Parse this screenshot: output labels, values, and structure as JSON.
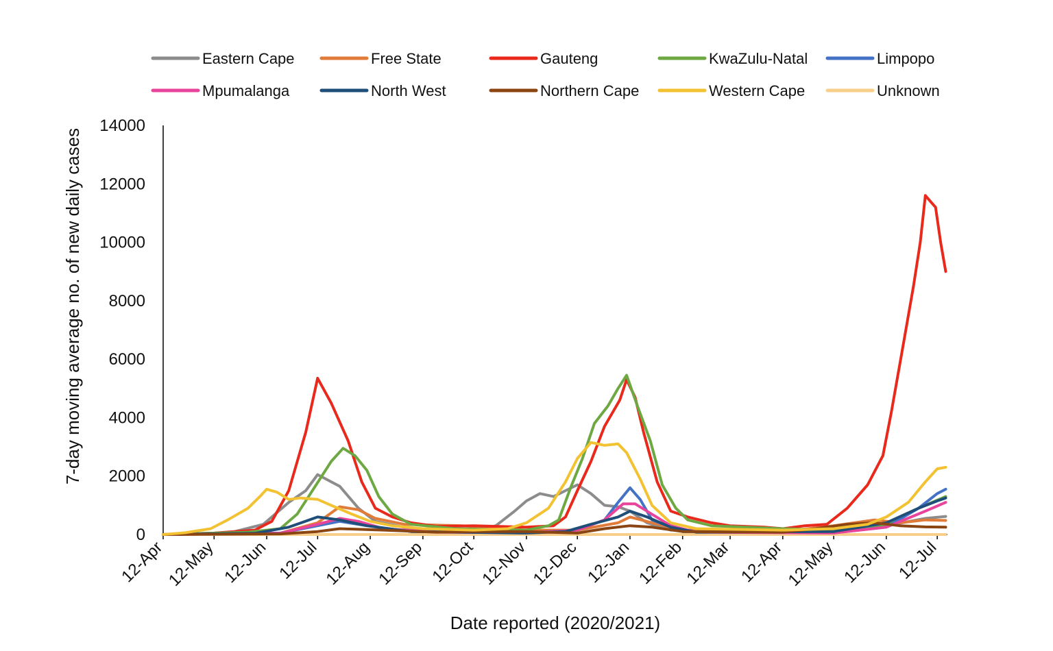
{
  "chart_data": {
    "type": "line",
    "xlabel": "Date reported (2020/2021)",
    "ylabel": "7-day moving average no. of new daily cases",
    "ylim": [
      0,
      14000
    ],
    "yticks": [
      "0",
      "2000",
      "4000",
      "6000",
      "8000",
      "10000",
      "12000",
      "14000"
    ],
    "xlim": [
      "2020-04-12",
      "2021-07-18"
    ],
    "xticks": [
      {
        "date": "2020-04-12",
        "label": "12-Apr"
      },
      {
        "date": "2020-05-12",
        "label": "12-May"
      },
      {
        "date": "2020-06-12",
        "label": "12-Jun"
      },
      {
        "date": "2020-07-12",
        "label": "12-Jul"
      },
      {
        "date": "2020-08-12",
        "label": "12-Aug"
      },
      {
        "date": "2020-09-12",
        "label": "12-Sep"
      },
      {
        "date": "2020-10-12",
        "label": "12-Oct"
      },
      {
        "date": "2020-11-12",
        "label": "12-Nov"
      },
      {
        "date": "2020-12-12",
        "label": "12-Dec"
      },
      {
        "date": "2021-01-12",
        "label": "12-Jan"
      },
      {
        "date": "2021-02-12",
        "label": "12-Feb"
      },
      {
        "date": "2021-03-12",
        "label": "12-Mar"
      },
      {
        "date": "2021-04-12",
        "label": "12-Apr"
      },
      {
        "date": "2021-05-12",
        "label": "12-May"
      },
      {
        "date": "2021-06-12",
        "label": "12-Jun"
      },
      {
        "date": "2021-07-12",
        "label": "12-Jul"
      }
    ],
    "grid": false,
    "legend_position": "top",
    "series": [
      {
        "name": "Eastern Cape",
        "color": "#8c8c8c",
        "points": [
          [
            "2020-04-12",
            0
          ],
          [
            "2020-05-20",
            40
          ],
          [
            "2020-06-10",
            350
          ],
          [
            "2020-06-25",
            1100
          ],
          [
            "2020-07-05",
            1500
          ],
          [
            "2020-07-12",
            2050
          ],
          [
            "2020-07-25",
            1650
          ],
          [
            "2020-08-05",
            900
          ],
          [
            "2020-08-15",
            450
          ],
          [
            "2020-09-05",
            200
          ],
          [
            "2020-10-12",
            150
          ],
          [
            "2020-10-25",
            300
          ],
          [
            "2020-11-05",
            800
          ],
          [
            "2020-11-12",
            1150
          ],
          [
            "2020-11-20",
            1400
          ],
          [
            "2020-11-28",
            1300
          ],
          [
            "2020-12-05",
            1500
          ],
          [
            "2020-12-12",
            1700
          ],
          [
            "2020-12-20",
            1400
          ],
          [
            "2020-12-28",
            1000
          ],
          [
            "2021-01-05",
            950
          ],
          [
            "2021-01-12",
            800
          ],
          [
            "2021-01-22",
            400
          ],
          [
            "2021-02-05",
            150
          ],
          [
            "2021-05-12",
            150
          ],
          [
            "2021-06-12",
            300
          ],
          [
            "2021-07-05",
            550
          ],
          [
            "2021-07-17",
            620
          ]
        ]
      },
      {
        "name": "Free State",
        "color": "#e07b39",
        "points": [
          [
            "2020-04-12",
            0
          ],
          [
            "2020-06-20",
            50
          ],
          [
            "2020-07-12",
            400
          ],
          [
            "2020-07-25",
            950
          ],
          [
            "2020-08-05",
            850
          ],
          [
            "2020-08-15",
            550
          ],
          [
            "2020-09-01",
            350
          ],
          [
            "2020-10-05",
            300
          ],
          [
            "2020-11-12",
            150
          ],
          [
            "2020-12-12",
            150
          ],
          [
            "2021-01-05",
            400
          ],
          [
            "2021-01-12",
            600
          ],
          [
            "2021-01-25",
            400
          ],
          [
            "2021-02-12",
            150
          ],
          [
            "2021-04-12",
            100
          ],
          [
            "2021-05-12",
            300
          ],
          [
            "2021-06-05",
            500
          ],
          [
            "2021-06-20",
            400
          ],
          [
            "2021-07-05",
            500
          ],
          [
            "2021-07-17",
            480
          ]
        ]
      },
      {
        "name": "Gauteng",
        "color": "#e8291c",
        "points": [
          [
            "2020-04-12",
            0
          ],
          [
            "2020-05-12",
            50
          ],
          [
            "2020-06-05",
            150
          ],
          [
            "2020-06-15",
            450
          ],
          [
            "2020-06-25",
            1500
          ],
          [
            "2020-07-05",
            3500
          ],
          [
            "2020-07-12",
            5350
          ],
          [
            "2020-07-20",
            4500
          ],
          [
            "2020-07-30",
            3200
          ],
          [
            "2020-08-07",
            1800
          ],
          [
            "2020-08-15",
            900
          ],
          [
            "2020-08-25",
            600
          ],
          [
            "2020-09-05",
            400
          ],
          [
            "2020-09-20",
            280
          ],
          [
            "2020-10-12",
            300
          ],
          [
            "2020-11-12",
            250
          ],
          [
            "2020-11-28",
            300
          ],
          [
            "2020-12-05",
            600
          ],
          [
            "2020-12-12",
            1500
          ],
          [
            "2020-12-20",
            2500
          ],
          [
            "2020-12-28",
            3700
          ],
          [
            "2021-01-06",
            4600
          ],
          [
            "2021-01-10",
            5300
          ],
          [
            "2021-01-15",
            4700
          ],
          [
            "2021-01-20",
            3500
          ],
          [
            "2021-01-28",
            1800
          ],
          [
            "2021-02-05",
            800
          ],
          [
            "2021-02-15",
            600
          ],
          [
            "2021-03-01",
            400
          ],
          [
            "2021-03-12",
            300
          ],
          [
            "2021-04-01",
            250
          ],
          [
            "2021-04-12",
            200
          ],
          [
            "2021-04-25",
            300
          ],
          [
            "2021-05-08",
            350
          ],
          [
            "2021-05-20",
            900
          ],
          [
            "2021-06-01",
            1700
          ],
          [
            "2021-06-10",
            2700
          ],
          [
            "2021-06-15",
            4200
          ],
          [
            "2021-06-22",
            6500
          ],
          [
            "2021-06-28",
            8500
          ],
          [
            "2021-07-02",
            10000
          ],
          [
            "2021-07-05",
            11600
          ],
          [
            "2021-07-08",
            11400
          ],
          [
            "2021-07-11",
            11200
          ],
          [
            "2021-07-14",
            10000
          ],
          [
            "2021-07-17",
            9000
          ]
        ]
      },
      {
        "name": "KwaZulu-Natal",
        "color": "#6ea843",
        "points": [
          [
            "2020-04-12",
            0
          ],
          [
            "2020-06-01",
            80
          ],
          [
            "2020-06-20",
            200
          ],
          [
            "2020-06-30",
            700
          ],
          [
            "2020-07-10",
            1600
          ],
          [
            "2020-07-20",
            2500
          ],
          [
            "2020-07-27",
            2950
          ],
          [
            "2020-08-03",
            2700
          ],
          [
            "2020-08-10",
            2200
          ],
          [
            "2020-08-17",
            1300
          ],
          [
            "2020-08-25",
            700
          ],
          [
            "2020-09-05",
            350
          ],
          [
            "2020-10-01",
            200
          ],
          [
            "2020-11-12",
            150
          ],
          [
            "2020-11-25",
            300
          ],
          [
            "2020-12-01",
            500
          ],
          [
            "2020-12-08",
            1600
          ],
          [
            "2020-12-15",
            2600
          ],
          [
            "2020-12-22",
            3800
          ],
          [
            "2020-12-30",
            4400
          ],
          [
            "2021-01-05",
            5000
          ],
          [
            "2021-01-10",
            5450
          ],
          [
            "2021-01-17",
            4300
          ],
          [
            "2021-01-24",
            3200
          ],
          [
            "2021-01-31",
            1700
          ],
          [
            "2021-02-08",
            900
          ],
          [
            "2021-02-15",
            500
          ],
          [
            "2021-03-01",
            300
          ],
          [
            "2021-04-12",
            200
          ],
          [
            "2021-05-12",
            150
          ],
          [
            "2021-06-12",
            300
          ],
          [
            "2021-07-01",
            900
          ],
          [
            "2021-07-17",
            1300
          ]
        ]
      },
      {
        "name": "Limpopo",
        "color": "#4472c4",
        "points": [
          [
            "2020-04-12",
            0
          ],
          [
            "2020-06-20",
            50
          ],
          [
            "2020-07-12",
            300
          ],
          [
            "2020-07-25",
            450
          ],
          [
            "2020-08-10",
            300
          ],
          [
            "2020-09-05",
            100
          ],
          [
            "2020-11-12",
            60
          ],
          [
            "2020-12-12",
            150
          ],
          [
            "2020-12-28",
            500
          ],
          [
            "2021-01-05",
            1100
          ],
          [
            "2021-01-12",
            1600
          ],
          [
            "2021-01-18",
            1200
          ],
          [
            "2021-01-25",
            500
          ],
          [
            "2021-02-12",
            100
          ],
          [
            "2021-05-12",
            60
          ],
          [
            "2021-06-12",
            250
          ],
          [
            "2021-07-01",
            900
          ],
          [
            "2021-07-12",
            1400
          ],
          [
            "2021-07-17",
            1550
          ]
        ]
      },
      {
        "name": "Mpumalanga",
        "color": "#e8449b",
        "points": [
          [
            "2020-04-12",
            0
          ],
          [
            "2020-06-20",
            40
          ],
          [
            "2020-07-12",
            350
          ],
          [
            "2020-07-25",
            550
          ],
          [
            "2020-08-05",
            450
          ],
          [
            "2020-08-20",
            200
          ],
          [
            "2020-09-20",
            80
          ],
          [
            "2020-11-12",
            60
          ],
          [
            "2020-12-12",
            150
          ],
          [
            "2020-12-28",
            500
          ],
          [
            "2021-01-08",
            1050
          ],
          [
            "2021-01-15",
            1050
          ],
          [
            "2021-01-22",
            800
          ],
          [
            "2021-02-05",
            300
          ],
          [
            "2021-02-20",
            80
          ],
          [
            "2021-05-12",
            50
          ],
          [
            "2021-06-12",
            250
          ],
          [
            "2021-07-05",
            800
          ],
          [
            "2021-07-17",
            1100
          ]
        ]
      },
      {
        "name": "North West",
        "color": "#1f4e79",
        "points": [
          [
            "2020-04-12",
            0
          ],
          [
            "2020-06-05",
            40
          ],
          [
            "2020-06-25",
            250
          ],
          [
            "2020-07-12",
            600
          ],
          [
            "2020-07-25",
            500
          ],
          [
            "2020-08-10",
            300
          ],
          [
            "2020-09-05",
            100
          ],
          [
            "2020-11-12",
            50
          ],
          [
            "2020-12-05",
            100
          ],
          [
            "2020-12-20",
            350
          ],
          [
            "2021-01-05",
            600
          ],
          [
            "2021-01-12",
            800
          ],
          [
            "2021-01-22",
            600
          ],
          [
            "2021-02-05",
            250
          ],
          [
            "2021-02-20",
            80
          ],
          [
            "2021-05-12",
            100
          ],
          [
            "2021-06-12",
            400
          ],
          [
            "2021-07-01",
            900
          ],
          [
            "2021-07-12",
            1150
          ],
          [
            "2021-07-17",
            1250
          ]
        ]
      },
      {
        "name": "Northern Cape",
        "color": "#8b4513",
        "points": [
          [
            "2020-04-12",
            0
          ],
          [
            "2020-06-20",
            20
          ],
          [
            "2020-07-12",
            100
          ],
          [
            "2020-07-25",
            200
          ],
          [
            "2020-08-20",
            150
          ],
          [
            "2020-09-20",
            80
          ],
          [
            "2020-10-12",
            100
          ],
          [
            "2020-11-12",
            100
          ],
          [
            "2020-12-12",
            50
          ],
          [
            "2020-12-28",
            200
          ],
          [
            "2021-01-12",
            300
          ],
          [
            "2021-01-25",
            250
          ],
          [
            "2021-02-12",
            100
          ],
          [
            "2021-04-12",
            80
          ],
          [
            "2021-05-01",
            200
          ],
          [
            "2021-05-20",
            350
          ],
          [
            "2021-06-05",
            400
          ],
          [
            "2021-06-20",
            300
          ],
          [
            "2021-07-05",
            260
          ],
          [
            "2021-07-17",
            250
          ]
        ]
      },
      {
        "name": "Western Cape",
        "color": "#f2c233",
        "points": [
          [
            "2020-04-12",
            0
          ],
          [
            "2020-04-25",
            60
          ],
          [
            "2020-05-10",
            200
          ],
          [
            "2020-05-20",
            500
          ],
          [
            "2020-06-01",
            900
          ],
          [
            "2020-06-08",
            1300
          ],
          [
            "2020-06-12",
            1550
          ],
          [
            "2020-06-18",
            1450
          ],
          [
            "2020-06-25",
            1200
          ],
          [
            "2020-07-02",
            1250
          ],
          [
            "2020-07-12",
            1200
          ],
          [
            "2020-07-20",
            1000
          ],
          [
            "2020-08-01",
            700
          ],
          [
            "2020-08-12",
            450
          ],
          [
            "2020-08-25",
            300
          ],
          [
            "2020-09-12",
            200
          ],
          [
            "2020-10-12",
            150
          ],
          [
            "2020-11-01",
            200
          ],
          [
            "2020-11-12",
            400
          ],
          [
            "2020-11-25",
            900
          ],
          [
            "2020-12-05",
            1800
          ],
          [
            "2020-12-12",
            2600
          ],
          [
            "2020-12-20",
            3150
          ],
          [
            "2020-12-28",
            3050
          ],
          [
            "2021-01-05",
            3100
          ],
          [
            "2021-01-10",
            2800
          ],
          [
            "2021-01-18",
            1900
          ],
          [
            "2021-01-25",
            1000
          ],
          [
            "2021-02-05",
            400
          ],
          [
            "2021-02-20",
            200
          ],
          [
            "2021-04-12",
            150
          ],
          [
            "2021-05-12",
            200
          ],
          [
            "2021-06-01",
            350
          ],
          [
            "2021-06-12",
            600
          ],
          [
            "2021-06-25",
            1100
          ],
          [
            "2021-07-05",
            1800
          ],
          [
            "2021-07-12",
            2250
          ],
          [
            "2021-07-17",
            2300
          ]
        ]
      },
      {
        "name": "Unknown",
        "color": "#f7cf8a",
        "points": [
          [
            "2020-04-12",
            0
          ],
          [
            "2021-07-17",
            0
          ]
        ]
      }
    ]
  }
}
